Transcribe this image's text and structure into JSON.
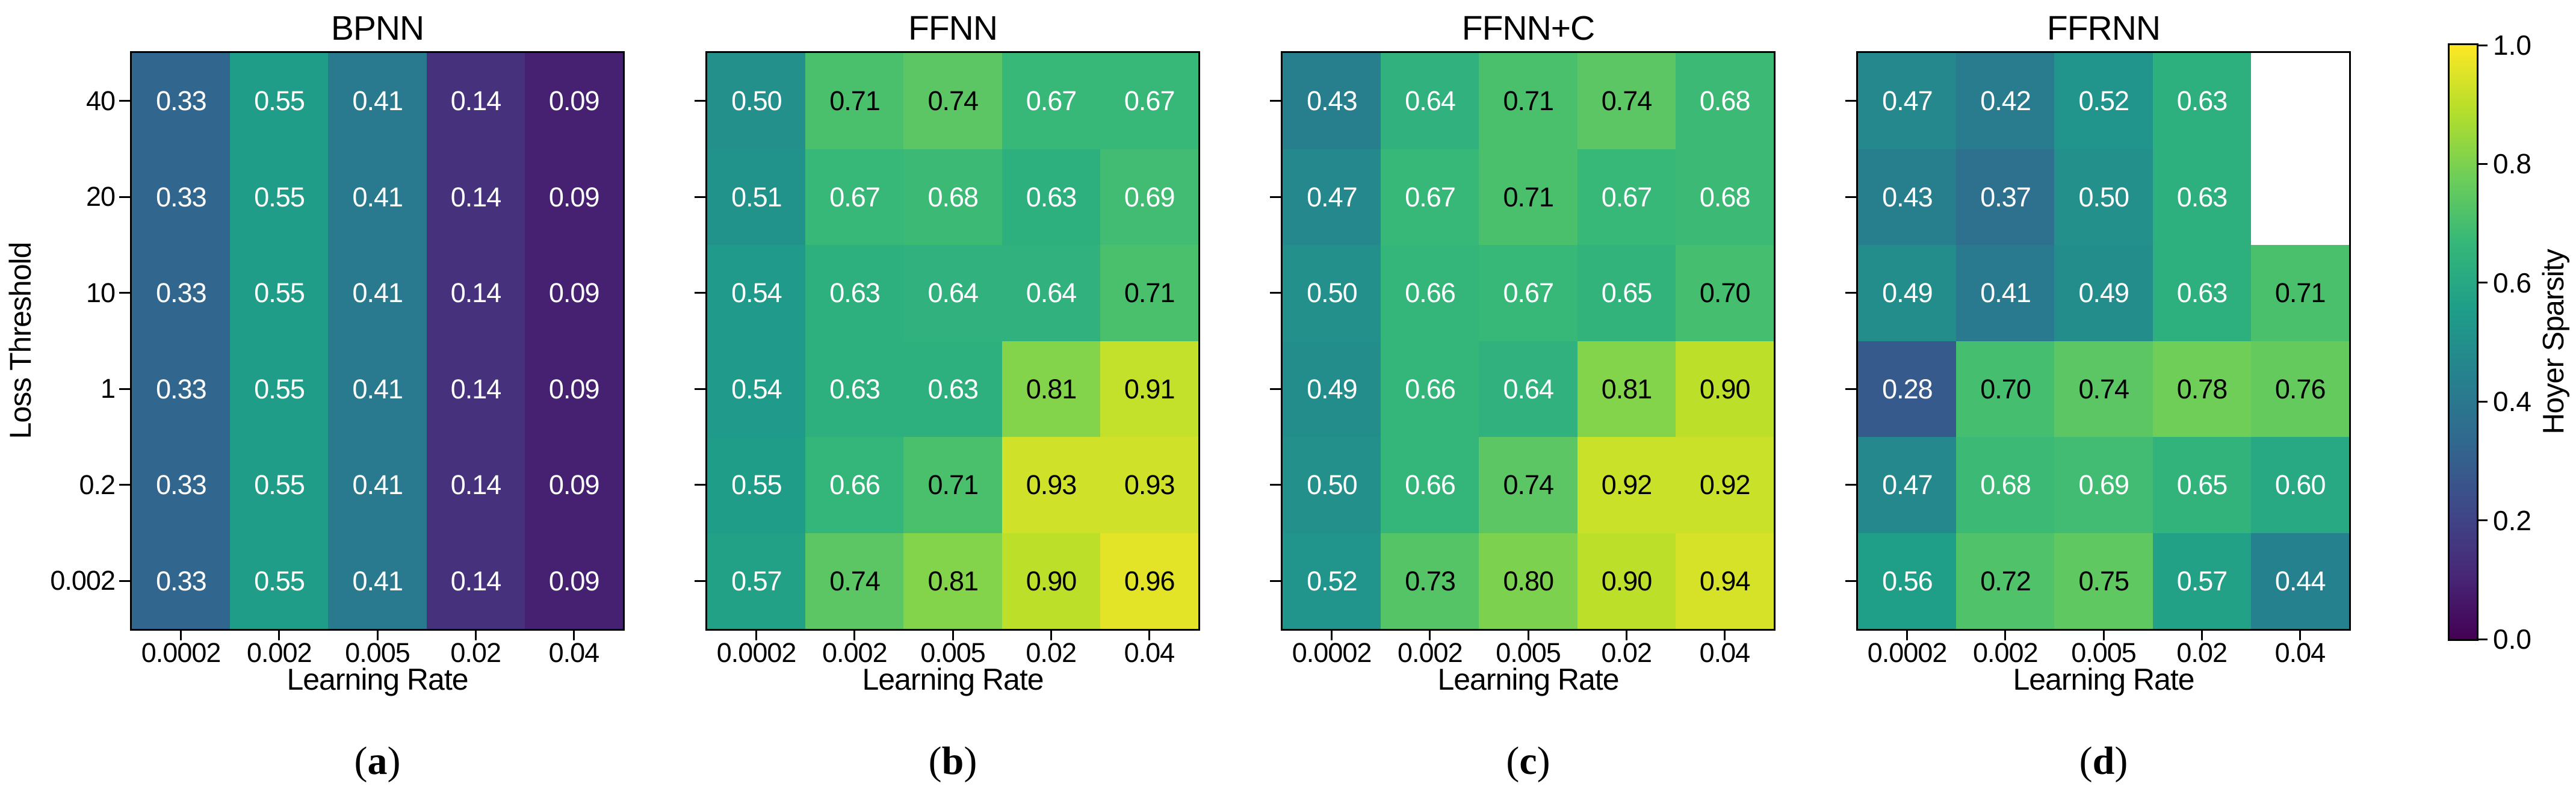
{
  "axes": {
    "x_label": "Learning Rate",
    "y_label": "Loss Threshold"
  },
  "colorbar": {
    "label": "Hoyer Sparsity",
    "colormap": "viridis",
    "vmin": 0.0,
    "vmax": 1.0,
    "ticks": [
      {
        "value": 0.0,
        "label": "0.0"
      },
      {
        "value": 0.2,
        "label": "0.2"
      },
      {
        "value": 0.4,
        "label": "0.4"
      },
      {
        "value": 0.6,
        "label": "0.6"
      },
      {
        "value": 0.8,
        "label": "0.8"
      },
      {
        "value": 1.0,
        "label": "1.0"
      }
    ],
    "colormap_stops": [
      {
        "v": 0.0,
        "color": "#440154"
      },
      {
        "v": 0.1111,
        "color": "#482878"
      },
      {
        "v": 0.2222,
        "color": "#3e4a89"
      },
      {
        "v": 0.3333,
        "color": "#31688e"
      },
      {
        "v": 0.4444,
        "color": "#26828e"
      },
      {
        "v": 0.5556,
        "color": "#1f9e89"
      },
      {
        "v": 0.6667,
        "color": "#35b779"
      },
      {
        "v": 0.7778,
        "color": "#6ece58"
      },
      {
        "v": 0.8889,
        "color": "#b5de2b"
      },
      {
        "v": 1.0,
        "color": "#fde725"
      }
    ]
  },
  "chart_data": [
    {
      "type": "heatmap",
      "title": "BPNN",
      "panel_label": "(a)",
      "xlabel": "Learning Rate",
      "ylabel": "Loss Threshold",
      "x_tick_labels": [
        "0.0002",
        "0.002",
        "0.005",
        "0.02",
        "0.04"
      ],
      "y_tick_labels": [
        "40",
        "20",
        "10",
        "1",
        "0.2",
        "0.002"
      ],
      "vmin": 0.0,
      "vmax": 1.0,
      "values": [
        [
          0.33,
          0.55,
          0.41,
          0.14,
          0.09
        ],
        [
          0.33,
          0.55,
          0.41,
          0.14,
          0.09
        ],
        [
          0.33,
          0.55,
          0.41,
          0.14,
          0.09
        ],
        [
          0.33,
          0.55,
          0.41,
          0.14,
          0.09
        ],
        [
          0.33,
          0.55,
          0.41,
          0.14,
          0.09
        ],
        [
          0.33,
          0.55,
          0.41,
          0.14,
          0.09
        ]
      ]
    },
    {
      "type": "heatmap",
      "title": "FFNN",
      "panel_label": "(b)",
      "xlabel": "Learning Rate",
      "ylabel": "Loss Threshold",
      "x_tick_labels": [
        "0.0002",
        "0.002",
        "0.005",
        "0.02",
        "0.04"
      ],
      "y_tick_labels": [
        "40",
        "20",
        "10",
        "1",
        "0.2",
        "0.002"
      ],
      "vmin": 0.0,
      "vmax": 1.0,
      "values": [
        [
          0.5,
          0.71,
          0.74,
          0.67,
          0.67
        ],
        [
          0.51,
          0.67,
          0.68,
          0.63,
          0.69
        ],
        [
          0.54,
          0.63,
          0.64,
          0.64,
          0.71
        ],
        [
          0.54,
          0.63,
          0.63,
          0.81,
          0.91
        ],
        [
          0.55,
          0.66,
          0.71,
          0.93,
          0.93
        ],
        [
          0.57,
          0.74,
          0.81,
          0.9,
          0.96
        ]
      ]
    },
    {
      "type": "heatmap",
      "title": "FFNN+C",
      "panel_label": "(c)",
      "xlabel": "Learning Rate",
      "ylabel": "Loss Threshold",
      "x_tick_labels": [
        "0.0002",
        "0.002",
        "0.005",
        "0.02",
        "0.04"
      ],
      "y_tick_labels": [
        "40",
        "20",
        "10",
        "1",
        "0.2",
        "0.002"
      ],
      "vmin": 0.0,
      "vmax": 1.0,
      "values": [
        [
          0.43,
          0.64,
          0.71,
          0.74,
          0.68
        ],
        [
          0.47,
          0.67,
          0.71,
          0.67,
          0.68
        ],
        [
          0.5,
          0.66,
          0.67,
          0.65,
          0.7
        ],
        [
          0.49,
          0.66,
          0.64,
          0.81,
          0.9
        ],
        [
          0.5,
          0.66,
          0.74,
          0.92,
          0.92
        ],
        [
          0.52,
          0.73,
          0.8,
          0.9,
          0.94
        ]
      ]
    },
    {
      "type": "heatmap",
      "title": "FFRNN",
      "panel_label": "(d)",
      "xlabel": "Learning Rate",
      "ylabel": "Loss Threshold",
      "x_tick_labels": [
        "0.0002",
        "0.002",
        "0.005",
        "0.02",
        "0.04"
      ],
      "y_tick_labels": [
        "40",
        "20",
        "10",
        "1",
        "0.2",
        "0.002"
      ],
      "vmin": 0.0,
      "vmax": 1.0,
      "values": [
        [
          0.47,
          0.42,
          0.52,
          0.63,
          null
        ],
        [
          0.43,
          0.37,
          0.5,
          0.63,
          null
        ],
        [
          0.49,
          0.41,
          0.49,
          0.63,
          0.71
        ],
        [
          0.28,
          0.7,
          0.74,
          0.78,
          0.76
        ],
        [
          0.47,
          0.68,
          0.69,
          0.65,
          0.6
        ],
        [
          0.56,
          0.72,
          0.75,
          0.57,
          0.44
        ]
      ]
    }
  ]
}
